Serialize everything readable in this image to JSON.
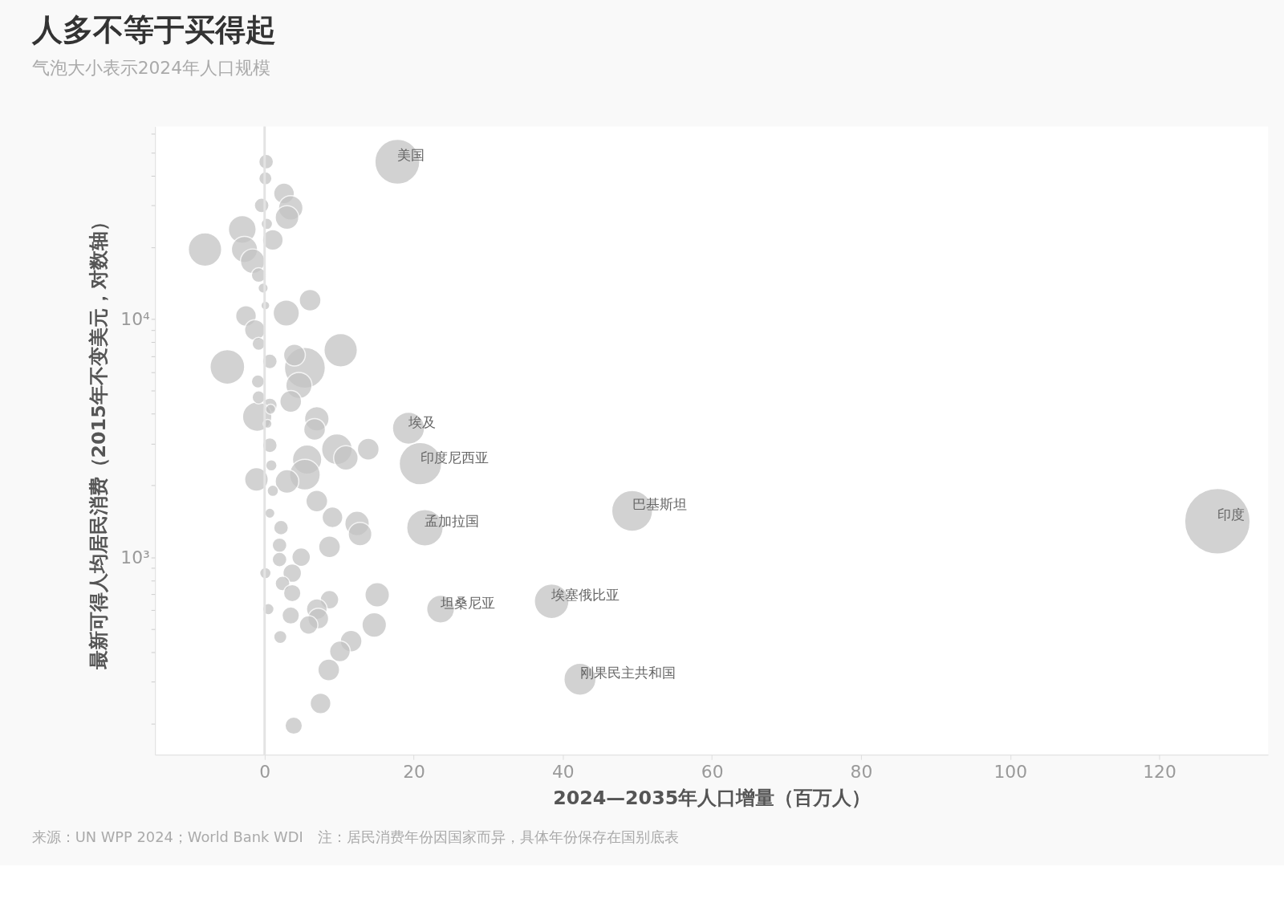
{
  "chart_data": {
    "type": "bubble",
    "title": "人多不等于买得起",
    "subtitle": "气泡大小表示2024年人口规模",
    "xlabel": "2024—2035年人口增量（百万人）",
    "ylabel": "最新可得人均居民消费（2015年不变美元，对数轴）",
    "annotations": [
      "来源：UN WPP 2024；World Bank WDI　注：居民消费年份因国家而异，具体年份保存在国别底表"
    ],
    "log": "y",
    "grid": false,
    "legend": false,
    "xlim": [
      -14.7,
      134.6
    ],
    "xticks": [
      0,
      20,
      40,
      60,
      80,
      100,
      120
    ],
    "ylim": [
      148,
      64400
    ],
    "yticks": [
      {
        "value": 200,
        "label": null
      },
      {
        "value": 300,
        "label": null
      },
      {
        "value": 400,
        "label": null
      },
      {
        "value": 500,
        "label": null
      },
      {
        "value": 600,
        "label": null
      },
      {
        "value": 700,
        "label": null
      },
      {
        "value": 800,
        "label": null
      },
      {
        "value": 900,
        "label": null
      },
      {
        "value": 1000,
        "label": "10³"
      },
      {
        "value": 2000,
        "label": null
      },
      {
        "value": 3000,
        "label": null
      },
      {
        "value": 4000,
        "label": null
      },
      {
        "value": 5000,
        "label": null
      },
      {
        "value": 6000,
        "label": null
      },
      {
        "value": 7000,
        "label": null
      },
      {
        "value": 8000,
        "label": null
      },
      {
        "value": 9000,
        "label": null
      },
      {
        "value": 10000,
        "label": "10⁴"
      },
      {
        "value": 20000,
        "label": null
      },
      {
        "value": 30000,
        "label": null
      },
      {
        "value": 40000,
        "label": null
      },
      {
        "value": 50000,
        "label": null
      },
      {
        "value": 60000,
        "label": null
      }
    ],
    "ref_lines": [
      {
        "axis": "x",
        "value": 0,
        "label": null,
        "color": "#e3e3e3"
      }
    ],
    "series": [
      {
        "color": "#c4c4c4",
        "x": [
          17.8,
          127.8,
          49.3,
          20.9,
          19.3,
          21.5,
          38.5,
          23.6,
          42.3,
          0.2,
          0.1,
          2.6,
          3.5,
          3.0,
          -0.4,
          -3.0,
          -8.0,
          -2.7,
          -1.6,
          1.1,
          0.3,
          -0.8,
          -0.2,
          6.1,
          2.9,
          -2.5,
          -1.3,
          0.1,
          10.2,
          5.4,
          4.0,
          -5.0,
          0.7,
          -0.8,
          4.6,
          3.5,
          0.7,
          -1.0,
          7.0,
          6.7,
          -0.9,
          -0.8,
          13.9,
          9.7,
          10.9,
          5.7,
          5.4,
          3.0,
          -1.1,
          0.7,
          0.9,
          7.0,
          1.1,
          9.1,
          12.4,
          12.8,
          2.2,
          0.7,
          8.7,
          2.0,
          4.9,
          2.0,
          3.7,
          2.4,
          0.1,
          3.7,
          8.7,
          15.1,
          7.0,
          7.2,
          3.5,
          5.9,
          14.7,
          11.6,
          10.1,
          8.6,
          7.5,
          3.9,
          2.1,
          0.5,
          0.8,
          0.4
        ],
        "values": [
          45800,
          1415,
          1565,
          2470,
          3480,
          1330,
          653,
          605,
          307,
          45800,
          39000,
          33700,
          29300,
          26700,
          30000,
          23800,
          19600,
          19600,
          17500,
          21500,
          25100,
          15300,
          13500,
          12000,
          10600,
          10300,
          9000,
          11400,
          7400,
          6240,
          7060,
          6300,
          6640,
          7870,
          5260,
          4510,
          4340,
          3890,
          3810,
          3440,
          5470,
          4690,
          2840,
          2840,
          2610,
          2570,
          2220,
          2080,
          2120,
          2950,
          2430,
          1720,
          1900,
          1470,
          1385,
          1250,
          1330,
          1530,
          1105,
          1122,
          1000,
          977,
          857,
          775,
          857,
          706,
          663,
          695,
          605,
          552,
          569,
          519,
          519,
          444,
          402,
          336,
          243,
          196,
          462,
          605,
          4180,
          3630
        ],
        "sizes": [
          0.47,
          1,
          0.39,
          0.42,
          0.24,
          0.31,
          0.28,
          0.18,
          0.24,
          0.05,
          0.04,
          0.1,
          0.14,
          0.13,
          0.05,
          0.18,
          0.26,
          0.16,
          0.14,
          0.1,
          0.03,
          0.05,
          0.024,
          0.11,
          0.16,
          0.1,
          0.1,
          0.018,
          0.26,
          0.39,
          0.11,
          0.28,
          0.05,
          0.04,
          0.16,
          0.11,
          0.05,
          0.2,
          0.14,
          0.11,
          0.04,
          0.04,
          0.11,
          0.22,
          0.14,
          0.2,
          0.22,
          0.13,
          0.13,
          0.05,
          0.03,
          0.11,
          0.03,
          0.1,
          0.14,
          0.13,
          0.05,
          0.024,
          0.11,
          0.05,
          0.08,
          0.05,
          0.08,
          0.05,
          0.03,
          0.07,
          0.08,
          0.14,
          0.1,
          0.1,
          0.07,
          0.08,
          0.14,
          0.11,
          0.1,
          0.11,
          0.1,
          0.07,
          0.04,
          0.03,
          0.024,
          0.018
        ],
        "value_labels": [
          "美国",
          "印度",
          "巴基斯坦",
          "印度尼西亚",
          "埃及",
          "孟加拉国",
          "埃塞俄比亚",
          "坦桑尼亚",
          "刚果民主共和国",
          null,
          null,
          null,
          null,
          null,
          null,
          null,
          null,
          null,
          null,
          null,
          null,
          null,
          null,
          null,
          null,
          null,
          null,
          null,
          null,
          null,
          null,
          null,
          null,
          null,
          null,
          null,
          null,
          null,
          null,
          null,
          null,
          null,
          null,
          null,
          null,
          null,
          null,
          null,
          null,
          null,
          null,
          null,
          null,
          null,
          null,
          null,
          null,
          null,
          null,
          null,
          null,
          null,
          null,
          null,
          null,
          null,
          null,
          null,
          null,
          null,
          null,
          null,
          null,
          null,
          null,
          null,
          null,
          null,
          null,
          null,
          null,
          null
        ]
      }
    ]
  }
}
